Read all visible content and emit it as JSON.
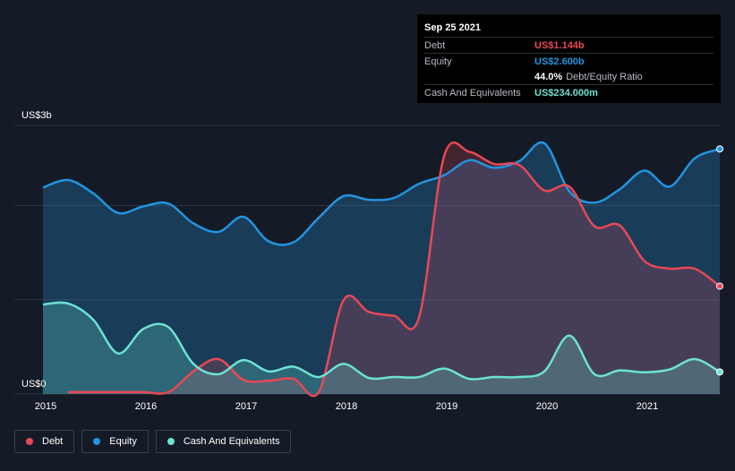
{
  "tooltip": {
    "date": "Sep 25 2021",
    "debt_label": "Debt",
    "debt_value": "US$1.144b",
    "equity_label": "Equity",
    "equity_value": "US$2.600b",
    "ratio_value": "44.0%",
    "ratio_label": "Debt/Equity Ratio",
    "cash_label": "Cash And Equivalents",
    "cash_value": "US$234.000m"
  },
  "legend": [
    {
      "label": "Debt",
      "color": "#e84856"
    },
    {
      "label": "Equity",
      "color": "#2394df"
    },
    {
      "label": "Cash And Equivalents",
      "color": "#6de2d2"
    }
  ],
  "colors": {
    "debt": "#e84856",
    "equity": "#2394df",
    "cash": "#6de2d2",
    "background": "#151b26",
    "grid": "#2e3440"
  },
  "chart_data": {
    "type": "area",
    "y_axis_labels": [
      "US$3b",
      "US$0"
    ],
    "ylim": [
      0,
      2.85
    ],
    "xlim": [
      2015.0,
      2021.75
    ],
    "x_ticks": [
      2015,
      2016,
      2017,
      2018,
      2019,
      2020,
      2021
    ],
    "x_tick_labels": [
      "2015",
      "2016",
      "2017",
      "2018",
      "2019",
      "2020",
      "2021"
    ],
    "grid": true,
    "series": [
      {
        "name": "Equity",
        "points": [
          [
            2015.0,
            2.19
          ],
          [
            2015.25,
            2.27
          ],
          [
            2015.5,
            2.13
          ],
          [
            2015.75,
            1.92
          ],
          [
            2016.0,
            1.99
          ],
          [
            2016.25,
            2.02
          ],
          [
            2016.5,
            1.81
          ],
          [
            2016.75,
            1.72
          ],
          [
            2017.0,
            1.88
          ],
          [
            2017.25,
            1.62
          ],
          [
            2017.5,
            1.61
          ],
          [
            2017.75,
            1.87
          ],
          [
            2018.0,
            2.1
          ],
          [
            2018.25,
            2.06
          ],
          [
            2018.5,
            2.08
          ],
          [
            2018.75,
            2.23
          ],
          [
            2019.0,
            2.32
          ],
          [
            2019.25,
            2.48
          ],
          [
            2019.5,
            2.4
          ],
          [
            2019.75,
            2.47
          ],
          [
            2020.0,
            2.66
          ],
          [
            2020.25,
            2.15
          ],
          [
            2020.5,
            2.03
          ],
          [
            2020.75,
            2.17
          ],
          [
            2021.0,
            2.37
          ],
          [
            2021.25,
            2.2
          ],
          [
            2021.5,
            2.5
          ],
          [
            2021.75,
            2.6
          ]
        ]
      },
      {
        "name": "Debt",
        "points": [
          [
            2015.25,
            0.02
          ],
          [
            2015.5,
            0.02
          ],
          [
            2015.75,
            0.02
          ],
          [
            2016.0,
            0.02
          ],
          [
            2016.25,
            0.02
          ],
          [
            2016.5,
            0.24
          ],
          [
            2016.75,
            0.37
          ],
          [
            2017.0,
            0.15
          ],
          [
            2017.25,
            0.14
          ],
          [
            2017.5,
            0.16
          ],
          [
            2017.75,
            0.02
          ],
          [
            2018.0,
            1.0
          ],
          [
            2018.25,
            0.87
          ],
          [
            2018.5,
            0.83
          ],
          [
            2018.75,
            0.81
          ],
          [
            2019.0,
            2.52
          ],
          [
            2019.25,
            2.57
          ],
          [
            2019.5,
            2.44
          ],
          [
            2019.75,
            2.43
          ],
          [
            2020.0,
            2.16
          ],
          [
            2020.25,
            2.2
          ],
          [
            2020.5,
            1.78
          ],
          [
            2020.75,
            1.79
          ],
          [
            2021.0,
            1.41
          ],
          [
            2021.25,
            1.33
          ],
          [
            2021.5,
            1.33
          ],
          [
            2021.75,
            1.144
          ]
        ]
      },
      {
        "name": "Cash And Equivalents",
        "points": [
          [
            2015.0,
            0.95
          ],
          [
            2015.25,
            0.96
          ],
          [
            2015.5,
            0.79
          ],
          [
            2015.75,
            0.43
          ],
          [
            2016.0,
            0.69
          ],
          [
            2016.25,
            0.71
          ],
          [
            2016.5,
            0.32
          ],
          [
            2016.75,
            0.21
          ],
          [
            2017.0,
            0.36
          ],
          [
            2017.25,
            0.24
          ],
          [
            2017.5,
            0.29
          ],
          [
            2017.75,
            0.18
          ],
          [
            2018.0,
            0.32
          ],
          [
            2018.25,
            0.17
          ],
          [
            2018.5,
            0.18
          ],
          [
            2018.75,
            0.18
          ],
          [
            2019.0,
            0.27
          ],
          [
            2019.25,
            0.16
          ],
          [
            2019.5,
            0.18
          ],
          [
            2019.75,
            0.18
          ],
          [
            2020.0,
            0.24
          ],
          [
            2020.25,
            0.62
          ],
          [
            2020.5,
            0.21
          ],
          [
            2020.75,
            0.25
          ],
          [
            2021.0,
            0.23
          ],
          [
            2021.25,
            0.26
          ],
          [
            2021.5,
            0.37
          ],
          [
            2021.75,
            0.234
          ]
        ]
      }
    ]
  }
}
